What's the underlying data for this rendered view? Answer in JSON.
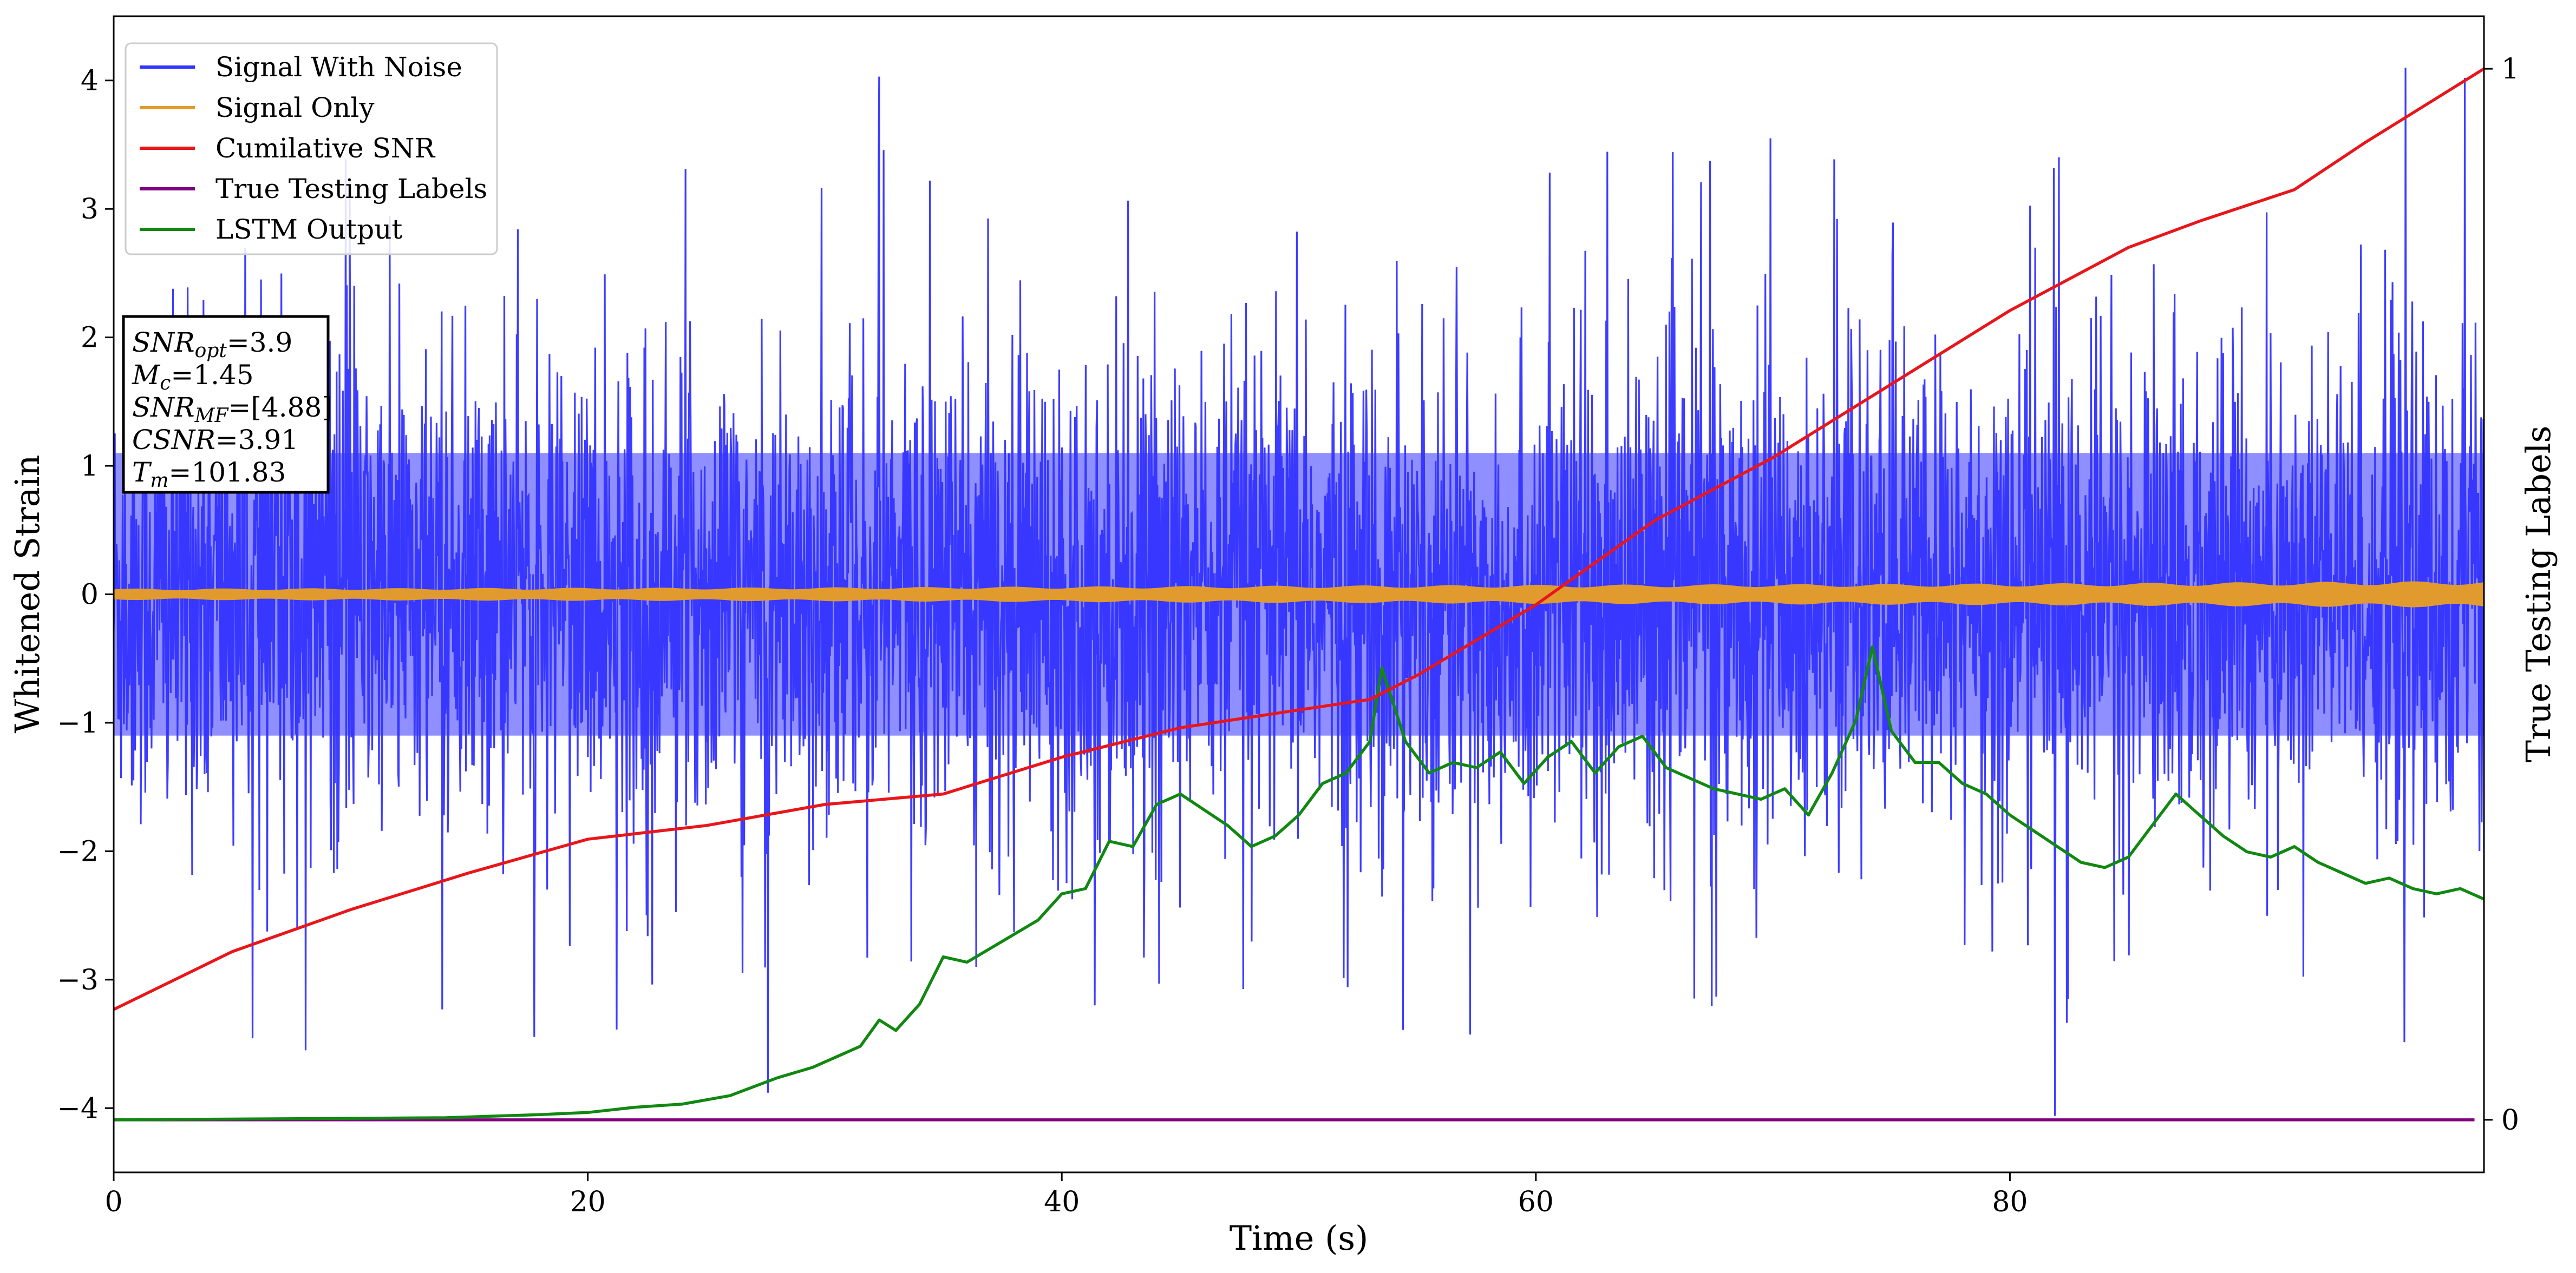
{
  "chart_data": {
    "type": "line",
    "xlabel": "Time (s)",
    "ylabel": "Whitened Strain",
    "y2label": "True Testing Labels",
    "xlim": [
      0,
      100
    ],
    "ylim": [
      -4.5,
      4.5
    ],
    "y2lim": [
      -0.05,
      1.05
    ],
    "xticks": [
      0,
      20,
      40,
      60,
      80
    ],
    "yticks": [
      -4,
      -3,
      -2,
      -1,
      0,
      1,
      2,
      3,
      4
    ],
    "y2ticks": [
      0,
      1
    ],
    "legend_position": "top-left",
    "annotation": [
      {
        "sym": "SNR",
        "sub": "opt",
        "val": "=3.9"
      },
      {
        "sym": "M",
        "sub": "c",
        "val": "=1.45"
      },
      {
        "sym": "SNR",
        "sub": "MF",
        "val": "=[4.88]"
      },
      {
        "sym": "CSNR",
        "sub": "",
        "val": "=3.91"
      },
      {
        "sym": "T",
        "sub": "m",
        "val": "=101.83"
      }
    ],
    "series": [
      {
        "name": "Signal With Noise",
        "color": "#3333ff",
        "style": "dense-noise",
        "core_amplitude": 1.1,
        "max_amplitude": 4.1,
        "peaks": [
          [
            32.3,
            4.03
          ],
          [
            27.6,
            -3.88
          ],
          [
            81.9,
            -4.06
          ],
          [
            96.7,
            4.1
          ],
          [
            99.2,
            4.02
          ],
          [
            69.9,
            3.55
          ],
          [
            8.1,
            -3.55
          ],
          [
            36.4,
            -2.9
          ],
          [
            41.4,
            -3.2
          ]
        ]
      },
      {
        "name": "Signal Only",
        "color": "#e09a2e",
        "style": "band",
        "amplitude": [
          [
            0,
            0.04
          ],
          [
            30,
            0.05
          ],
          [
            60,
            0.07
          ],
          [
            80,
            0.08
          ],
          [
            100,
            0.1
          ]
        ]
      },
      {
        "name": "Cumilative SNR",
        "color": "#e8161b",
        "axis": "right",
        "x": [
          0,
          5,
          10,
          15,
          20,
          25,
          30,
          35,
          40,
          45,
          50,
          53,
          55,
          60,
          65,
          70,
          75,
          80,
          85,
          88,
          92,
          95,
          100
        ],
        "y": [
          0.105,
          0.16,
          0.2,
          0.235,
          0.267,
          0.28,
          0.3,
          0.31,
          0.345,
          0.373,
          0.39,
          0.4,
          0.423,
          0.49,
          0.57,
          0.63,
          0.7,
          0.77,
          0.83,
          0.855,
          0.885,
          0.93,
          1.0
        ]
      },
      {
        "name": "True Testing Labels",
        "color": "#800080",
        "axis": "right",
        "x": [
          0,
          99.6
        ],
        "y": [
          0,
          0
        ]
      },
      {
        "name": "LSTM Output",
        "color": "#118811",
        "axis": "right",
        "x": [
          0,
          14,
          18,
          20,
          22,
          24,
          26,
          28,
          29.5,
          30.5,
          31.5,
          32.3,
          33,
          34,
          35,
          36,
          37.5,
          39,
          40,
          41,
          42,
          43,
          44,
          45,
          46,
          47,
          48,
          49,
          50,
          51,
          52,
          53,
          53.5,
          54.5,
          55.5,
          56.5,
          57.5,
          58.5,
          59.5,
          60.5,
          61.5,
          62.5,
          63.5,
          64.5,
          65.5,
          66.5,
          67.5,
          68.5,
          69.5,
          70.5,
          71.5,
          72.5,
          73.5,
          74.2,
          75,
          76,
          77,
          78,
          79,
          80,
          81,
          82,
          83,
          84,
          85,
          86,
          87,
          88,
          89,
          90,
          91,
          92,
          93,
          94,
          95,
          96,
          97,
          98,
          99,
          100
        ],
        "y": [
          0,
          0.002,
          0.005,
          0.007,
          0.012,
          0.015,
          0.023,
          0.04,
          0.05,
          0.06,
          0.07,
          0.095,
          0.085,
          0.11,
          0.155,
          0.15,
          0.17,
          0.19,
          0.215,
          0.22,
          0.265,
          0.26,
          0.3,
          0.31,
          0.295,
          0.28,
          0.26,
          0.27,
          0.29,
          0.32,
          0.33,
          0.36,
          0.43,
          0.36,
          0.33,
          0.34,
          0.335,
          0.35,
          0.32,
          0.345,
          0.36,
          0.33,
          0.355,
          0.365,
          0.335,
          0.325,
          0.315,
          0.31,
          0.305,
          0.315,
          0.29,
          0.33,
          0.38,
          0.45,
          0.37,
          0.34,
          0.34,
          0.32,
          0.31,
          0.29,
          0.275,
          0.26,
          0.245,
          0.24,
          0.25,
          0.28,
          0.31,
          0.29,
          0.27,
          0.255,
          0.25,
          0.26,
          0.245,
          0.235,
          0.225,
          0.23,
          0.22,
          0.215,
          0.22,
          0.21
        ]
      }
    ]
  }
}
